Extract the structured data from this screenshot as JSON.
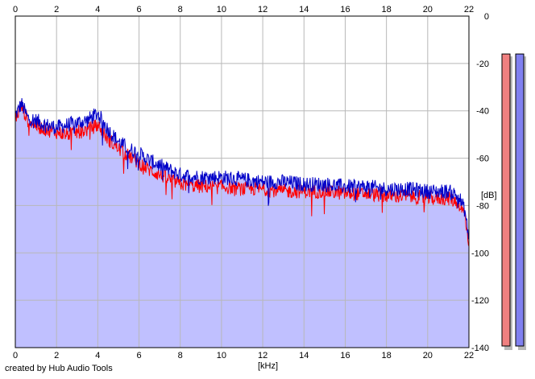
{
  "chart_data": {
    "type": "area",
    "xlabel": "[kHz]",
    "ylabel": "[dB]",
    "xlim": [
      0,
      22
    ],
    "ylim": [
      -140,
      0
    ],
    "x_ticks": [
      "0",
      "2",
      "4",
      "6",
      "8",
      "10",
      "12",
      "14",
      "16",
      "18",
      "20",
      "22"
    ],
    "y_ticks": [
      "0",
      "-20",
      "-40",
      "-60",
      "-80",
      "-100",
      "-120",
      "-140"
    ],
    "grid": true,
    "colors": {
      "fill": "#c0c0ff",
      "left": "#ff0000",
      "right": "#0000c8",
      "grid": "#b8b8b8"
    },
    "series": [
      {
        "channel": "left",
        "x": [
          0,
          0.3,
          0.6,
          1.0,
          1.5,
          2.0,
          2.5,
          3.0,
          3.5,
          4.0,
          4.5,
          5.0,
          5.5,
          6.0,
          6.5,
          7.0,
          7.5,
          8.0,
          9.0,
          10.0,
          11.0,
          12.0,
          13.0,
          14.0,
          15.0,
          16.0,
          17.0,
          18.0,
          19.0,
          20.0,
          21.0,
          21.5,
          21.8,
          22.0
        ],
        "values": [
          -43,
          -38,
          -44,
          -46,
          -48,
          -49,
          -50,
          -49,
          -48,
          -46,
          -52,
          -56,
          -59,
          -62,
          -65,
          -67,
          -69,
          -71,
          -72,
          -72,
          -73,
          -73,
          -74,
          -74,
          -74,
          -75,
          -75,
          -76,
          -76,
          -77,
          -77,
          -79,
          -84,
          -96
        ]
      },
      {
        "channel": "right",
        "x": [
          0,
          0.3,
          0.6,
          1.0,
          1.5,
          2.0,
          2.5,
          3.0,
          3.5,
          4.0,
          4.5,
          5.0,
          5.5,
          6.0,
          6.5,
          7.0,
          7.5,
          8.0,
          9.0,
          10.0,
          11.0,
          12.0,
          13.0,
          14.0,
          15.0,
          16.0,
          17.0,
          18.0,
          19.0,
          20.0,
          21.0,
          21.5,
          21.8,
          22.0
        ],
        "values": [
          -42,
          -37,
          -43,
          -44,
          -46,
          -47,
          -46,
          -45,
          -44,
          -41,
          -48,
          -53,
          -56,
          -58,
          -61,
          -63,
          -65,
          -67,
          -68,
          -68,
          -69,
          -70,
          -70,
          -71,
          -71,
          -72,
          -72,
          -73,
          -73,
          -74,
          -74,
          -76,
          -82,
          -94
        ]
      }
    ],
    "meters": [
      {
        "channel": "left",
        "value_db": -16
      },
      {
        "channel": "right",
        "value_db": -16
      }
    ]
  },
  "footer": {
    "credit": "created by Hub Audio Tools"
  }
}
